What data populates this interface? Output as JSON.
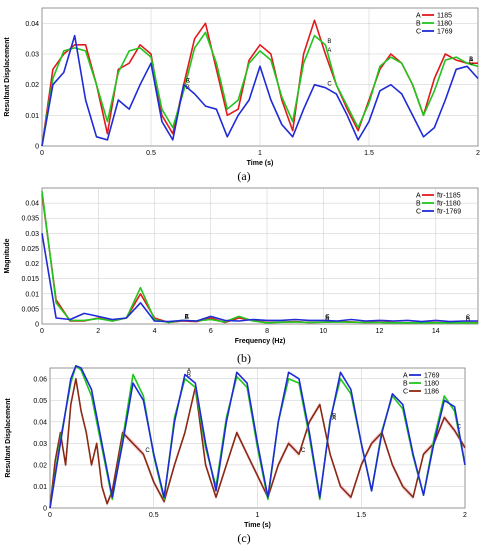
{
  "colors": {
    "red": "#e31a1c",
    "green": "#22c41e",
    "blue": "#1f2bd6",
    "darkred": "#8b2a14",
    "pink": "#f4b6c2",
    "grid": "#c8c8c8"
  },
  "chart_data": [
    {
      "type": "line",
      "panel": "(a)",
      "xlabel": "Time (s)",
      "ylabel": "Resultant Displacement",
      "xlim": [
        0,
        2
      ],
      "ylim": [
        0,
        0.045
      ],
      "xticks": [
        "0",
        "0.5",
        "1",
        "1.5",
        "2"
      ],
      "yticks": [
        "0",
        "0.01",
        "0.02",
        "0.03",
        "0.04"
      ],
      "legend_position": "top-right",
      "series": [
        {
          "name": "1185",
          "marker": "A",
          "color": "#e31a1c",
          "x": [
            0,
            0.05,
            0.1,
            0.15,
            0.2,
            0.25,
            0.3,
            0.35,
            0.4,
            0.45,
            0.5,
            0.55,
            0.6,
            0.65,
            0.7,
            0.75,
            0.8,
            0.85,
            0.9,
            0.95,
            1.0,
            1.05,
            1.1,
            1.15,
            1.2,
            1.25,
            1.3,
            1.35,
            1.4,
            1.45,
            1.5,
            1.55,
            1.6,
            1.65,
            1.7,
            1.75,
            1.8,
            1.85,
            1.9,
            1.95,
            2.0
          ],
          "y": [
            0.0,
            0.025,
            0.03,
            0.033,
            0.033,
            0.02,
            0.004,
            0.025,
            0.027,
            0.033,
            0.03,
            0.01,
            0.004,
            0.02,
            0.035,
            0.04,
            0.025,
            0.01,
            0.012,
            0.028,
            0.033,
            0.03,
            0.015,
            0.005,
            0.03,
            0.041,
            0.03,
            0.02,
            0.012,
            0.005,
            0.015,
            0.025,
            0.03,
            0.027,
            0.02,
            0.01,
            0.022,
            0.03,
            0.028,
            0.027,
            0.027
          ]
        },
        {
          "name": "1180",
          "marker": "B",
          "color": "#22c41e",
          "x": [
            0,
            0.05,
            0.1,
            0.15,
            0.2,
            0.25,
            0.3,
            0.35,
            0.4,
            0.45,
            0.5,
            0.55,
            0.6,
            0.65,
            0.7,
            0.75,
            0.8,
            0.85,
            0.9,
            0.95,
            1.0,
            1.05,
            1.1,
            1.15,
            1.2,
            1.25,
            1.3,
            1.35,
            1.4,
            1.45,
            1.5,
            1.55,
            1.6,
            1.65,
            1.7,
            1.75,
            1.8,
            1.85,
            1.9,
            1.95,
            2.0
          ],
          "y": [
            0.0,
            0.022,
            0.031,
            0.032,
            0.031,
            0.02,
            0.008,
            0.024,
            0.031,
            0.032,
            0.029,
            0.012,
            0.006,
            0.018,
            0.032,
            0.037,
            0.027,
            0.012,
            0.015,
            0.027,
            0.031,
            0.028,
            0.016,
            0.008,
            0.027,
            0.036,
            0.033,
            0.02,
            0.013,
            0.006,
            0.014,
            0.026,
            0.029,
            0.027,
            0.02,
            0.01,
            0.018,
            0.028,
            0.029,
            0.027,
            0.026
          ]
        },
        {
          "name": "1769",
          "marker": "C",
          "color": "#1f2bd6",
          "x": [
            0,
            0.05,
            0.1,
            0.15,
            0.2,
            0.25,
            0.3,
            0.35,
            0.4,
            0.45,
            0.5,
            0.55,
            0.6,
            0.65,
            0.7,
            0.75,
            0.8,
            0.85,
            0.9,
            0.95,
            1.0,
            1.05,
            1.1,
            1.15,
            1.2,
            1.25,
            1.3,
            1.35,
            1.4,
            1.45,
            1.5,
            1.55,
            1.6,
            1.65,
            1.7,
            1.75,
            1.8,
            1.85,
            1.9,
            1.95,
            2.0
          ],
          "y": [
            0.0,
            0.02,
            0.024,
            0.036,
            0.015,
            0.003,
            0.002,
            0.015,
            0.012,
            0.02,
            0.027,
            0.008,
            0.002,
            0.02,
            0.017,
            0.013,
            0.012,
            0.003,
            0.01,
            0.015,
            0.026,
            0.015,
            0.007,
            0.003,
            0.012,
            0.02,
            0.019,
            0.017,
            0.01,
            0.002,
            0.008,
            0.018,
            0.02,
            0.017,
            0.01,
            0.003,
            0.006,
            0.015,
            0.025,
            0.026,
            0.022
          ]
        }
      ]
    },
    {
      "type": "line",
      "panel": "(b)",
      "xlabel": "Frequency (Hz)",
      "ylabel": "Magnitude",
      "xlim": [
        0,
        15.5
      ],
      "ylim": [
        0,
        0.045
      ],
      "xticks": [
        "0",
        "2",
        "4",
        "6",
        "8",
        "10",
        "12",
        "14"
      ],
      "yticks": [
        "0",
        "0.005",
        "0.01",
        "0.015",
        "0.02",
        "0.025",
        "0.03",
        "0.035",
        "0.04"
      ],
      "legend_position": "top-right",
      "series": [
        {
          "name": "ftr-1185",
          "marker": "A",
          "color": "#e31a1c",
          "x": [
            0,
            0.5,
            1,
            1.5,
            2,
            2.5,
            3,
            3.5,
            4,
            4.5,
            5,
            5.5,
            6,
            6.5,
            7,
            7.5,
            8,
            8.5,
            9,
            9.5,
            10,
            10.5,
            11,
            11.5,
            12,
            12.5,
            13,
            13.5,
            14,
            14.5,
            15,
            15.5
          ],
          "y": [
            0.043,
            0.008,
            0.001,
            0.001,
            0.002,
            0.001,
            0.002,
            0.01,
            0.002,
            0.0005,
            0.001,
            0.0008,
            0.002,
            0.0005,
            0.002,
            0.0012,
            0.0005,
            0.0006,
            0.0008,
            0.0005,
            0.0006,
            0.0008,
            0.0007,
            0.0005,
            0.0006,
            0.0005,
            0.0004,
            0.0005,
            0.0005,
            0.0004,
            0.0005,
            0.0005
          ]
        },
        {
          "name": "ftr-1180",
          "marker": "B",
          "color": "#22c41e",
          "x": [
            0,
            0.5,
            1,
            1.5,
            2,
            2.5,
            3,
            3.5,
            4,
            4.5,
            5,
            5.5,
            6,
            6.5,
            7,
            7.5,
            8,
            8.5,
            9,
            9.5,
            10,
            10.5,
            11,
            11.5,
            12,
            12.5,
            13,
            13.5,
            14,
            14.5,
            15,
            15.5
          ],
          "y": [
            0.044,
            0.007,
            0.0012,
            0.0012,
            0.0018,
            0.001,
            0.002,
            0.012,
            0.0015,
            0.0005,
            0.0012,
            0.001,
            0.0015,
            0.0007,
            0.0025,
            0.001,
            0.0004,
            0.0006,
            0.0007,
            0.0005,
            0.0006,
            0.0007,
            0.0006,
            0.0005,
            0.0005,
            0.0004,
            0.0004,
            0.0004,
            0.0004,
            0.0004,
            0.0004,
            0.0004
          ]
        },
        {
          "name": "ftr-1769",
          "marker": "C",
          "color": "#1f2bd6",
          "x": [
            0,
            0.5,
            1,
            1.5,
            2,
            2.5,
            3,
            3.5,
            4,
            4.5,
            5,
            5.5,
            6,
            6.5,
            7,
            7.5,
            8,
            8.5,
            9,
            9.5,
            10,
            10.5,
            11,
            11.5,
            12,
            12.5,
            13,
            13.5,
            14,
            14.5,
            15,
            15.5
          ],
          "y": [
            0.03,
            0.002,
            0.0015,
            0.0035,
            0.0025,
            0.0015,
            0.002,
            0.007,
            0.001,
            0.0008,
            0.0012,
            0.001,
            0.0025,
            0.0012,
            0.001,
            0.0015,
            0.0012,
            0.0012,
            0.0015,
            0.0012,
            0.0012,
            0.001,
            0.0015,
            0.001,
            0.0012,
            0.001,
            0.0012,
            0.0008,
            0.0012,
            0.0008,
            0.001,
            0.001
          ]
        }
      ]
    },
    {
      "type": "line",
      "panel": "(c)",
      "xlabel": "Time (s)",
      "ylabel": "Resultant Displacement",
      "xlim": [
        0,
        2
      ],
      "ylim": [
        0,
        0.065
      ],
      "xticks": [
        "0",
        "0.5",
        "1",
        "1.5",
        "2"
      ],
      "yticks": [
        "0",
        "0.01",
        "0.02",
        "0.03",
        "0.04",
        "0.05",
        "0.06"
      ],
      "legend_position": "top-right",
      "series": [
        {
          "name": "1769",
          "marker": "A",
          "color": "#1f2bd6",
          "x": [
            0,
            0.05,
            0.1,
            0.125,
            0.15,
            0.2,
            0.25,
            0.3,
            0.35,
            0.4,
            0.45,
            0.5,
            0.55,
            0.6,
            0.65,
            0.7,
            0.75,
            0.8,
            0.85,
            0.9,
            0.95,
            1.0,
            1.05,
            1.1,
            1.15,
            1.2,
            1.25,
            1.3,
            1.35,
            1.4,
            1.45,
            1.5,
            1.55,
            1.6,
            1.65,
            1.7,
            1.75,
            1.8,
            1.85,
            1.9,
            1.95,
            2.0
          ],
          "y": [
            0.0,
            0.03,
            0.06,
            0.066,
            0.065,
            0.055,
            0.03,
            0.005,
            0.03,
            0.058,
            0.05,
            0.025,
            0.005,
            0.04,
            0.062,
            0.058,
            0.03,
            0.008,
            0.04,
            0.063,
            0.058,
            0.03,
            0.005,
            0.04,
            0.063,
            0.06,
            0.035,
            0.005,
            0.04,
            0.063,
            0.055,
            0.03,
            0.008,
            0.035,
            0.053,
            0.048,
            0.025,
            0.006,
            0.03,
            0.05,
            0.047,
            0.02
          ]
        },
        {
          "name": "1180",
          "marker": "B",
          "color": "#22c41e",
          "x": [
            0,
            0.05,
            0.1,
            0.125,
            0.15,
            0.2,
            0.25,
            0.3,
            0.35,
            0.4,
            0.45,
            0.5,
            0.55,
            0.6,
            0.65,
            0.7,
            0.75,
            0.8,
            0.85,
            0.9,
            0.95,
            1.0,
            1.05,
            1.1,
            1.15,
            1.2,
            1.25,
            1.3,
            1.35,
            1.4,
            1.45,
            1.5,
            1.55,
            1.6,
            1.65,
            1.7,
            1.75,
            1.8,
            1.85,
            1.9,
            1.95,
            2.0
          ],
          "y": [
            0.0,
            0.032,
            0.058,
            0.066,
            0.064,
            0.052,
            0.028,
            0.004,
            0.032,
            0.062,
            0.052,
            0.024,
            0.004,
            0.042,
            0.06,
            0.056,
            0.028,
            0.01,
            0.042,
            0.061,
            0.056,
            0.028,
            0.004,
            0.04,
            0.06,
            0.058,
            0.033,
            0.004,
            0.041,
            0.06,
            0.053,
            0.03,
            0.008,
            0.036,
            0.052,
            0.046,
            0.024,
            0.006,
            0.032,
            0.052,
            0.045,
            0.02
          ]
        },
        {
          "name": "1186",
          "marker": "C",
          "color": "#8b2a14",
          "x": [
            0,
            0.025,
            0.05,
            0.075,
            0.1,
            0.125,
            0.15,
            0.175,
            0.2,
            0.225,
            0.25,
            0.275,
            0.3,
            0.35,
            0.4,
            0.45,
            0.5,
            0.55,
            0.6,
            0.65,
            0.7,
            0.75,
            0.8,
            0.85,
            0.9,
            0.95,
            1.0,
            1.05,
            1.1,
            1.15,
            1.2,
            1.25,
            1.3,
            1.35,
            1.4,
            1.45,
            1.5,
            1.55,
            1.6,
            1.65,
            1.7,
            1.75,
            1.8,
            1.85,
            1.9,
            1.95,
            2.0
          ],
          "y": [
            0.0,
            0.022,
            0.035,
            0.02,
            0.048,
            0.06,
            0.045,
            0.035,
            0.02,
            0.03,
            0.01,
            0.002,
            0.008,
            0.035,
            0.03,
            0.025,
            0.012,
            0.003,
            0.02,
            0.035,
            0.056,
            0.02,
            0.005,
            0.02,
            0.035,
            0.025,
            0.015,
            0.005,
            0.02,
            0.03,
            0.025,
            0.04,
            0.048,
            0.025,
            0.01,
            0.005,
            0.02,
            0.03,
            0.035,
            0.02,
            0.01,
            0.005,
            0.025,
            0.03,
            0.042,
            0.036,
            0.028
          ]
        }
      ]
    }
  ],
  "captions": [
    "(a)",
    "(b)",
    "(c)"
  ]
}
